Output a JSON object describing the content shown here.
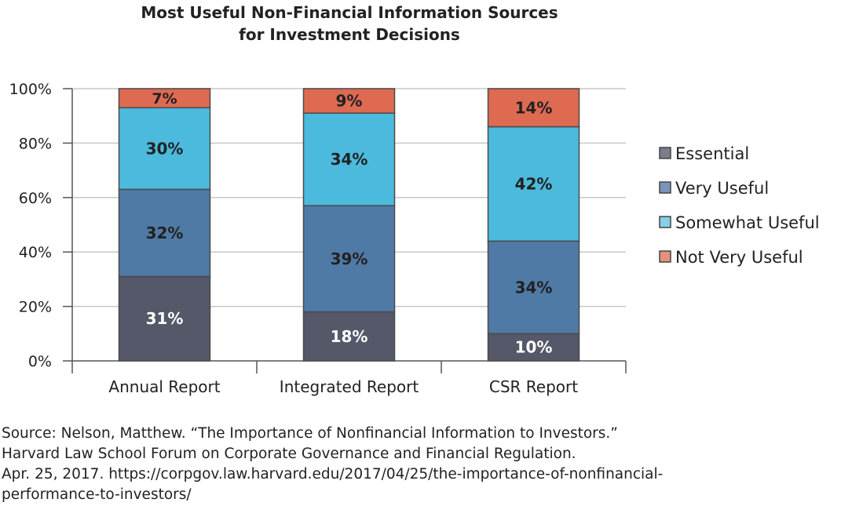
{
  "chart_data": {
    "type": "bar",
    "stacked": true,
    "title": "Most Useful Non-Financial Information Sources for Investment Decisions",
    "title_lines": [
      "Most Useful Non-Financial Information Sources",
      "for Investment Decisions"
    ],
    "xlabel": "",
    "ylabel": "",
    "ylim": [
      0,
      100
    ],
    "yticks": [
      "0%",
      "20%",
      "40%",
      "60%",
      "80%",
      "100%"
    ],
    "grid": true,
    "legend_position": "right",
    "categories": [
      "Annual Report",
      "Integrated Report",
      "CSR Report"
    ],
    "series": [
      {
        "name": "Essential",
        "values": [
          31,
          18,
          10
        ],
        "labels": [
          "31%",
          "18%",
          "10%"
        ],
        "color": "#545868",
        "label_color": "#ffffff",
        "legend_color": "#7a7c88"
      },
      {
        "name": "Very Useful",
        "values": [
          32,
          39,
          34
        ],
        "labels": [
          "32%",
          "39%",
          "34%"
        ],
        "color": "#4f7aa6",
        "label_color": "#222222",
        "legend_color": "#7a95b8"
      },
      {
        "name": "Somewhat Useful",
        "values": [
          30,
          34,
          42
        ],
        "labels": [
          "30%",
          "34%",
          "42%"
        ],
        "color": "#4bbadd",
        "label_color": "#222222",
        "legend_color": "#86cfe6"
      },
      {
        "name": "Not Very Useful",
        "values": [
          7,
          9,
          14
        ],
        "labels": [
          "7%",
          "9%",
          "14%"
        ],
        "color": "#de6a52",
        "label_color": "#222222",
        "legend_color": "#e4917c"
      }
    ]
  },
  "source_lines": [
    "Source: Nelson, Matthew. “The Importance of Nonfinancial Information to Investors.”",
    "Harvard Law School  Forum on Corporate Governance and Financial Regulation.",
    "Apr. 25, 2017. https://corpgov.law.harvard.edu/2017/04/25/the-importance-of-nonfinancial-",
    "performance-to-investors/"
  ]
}
